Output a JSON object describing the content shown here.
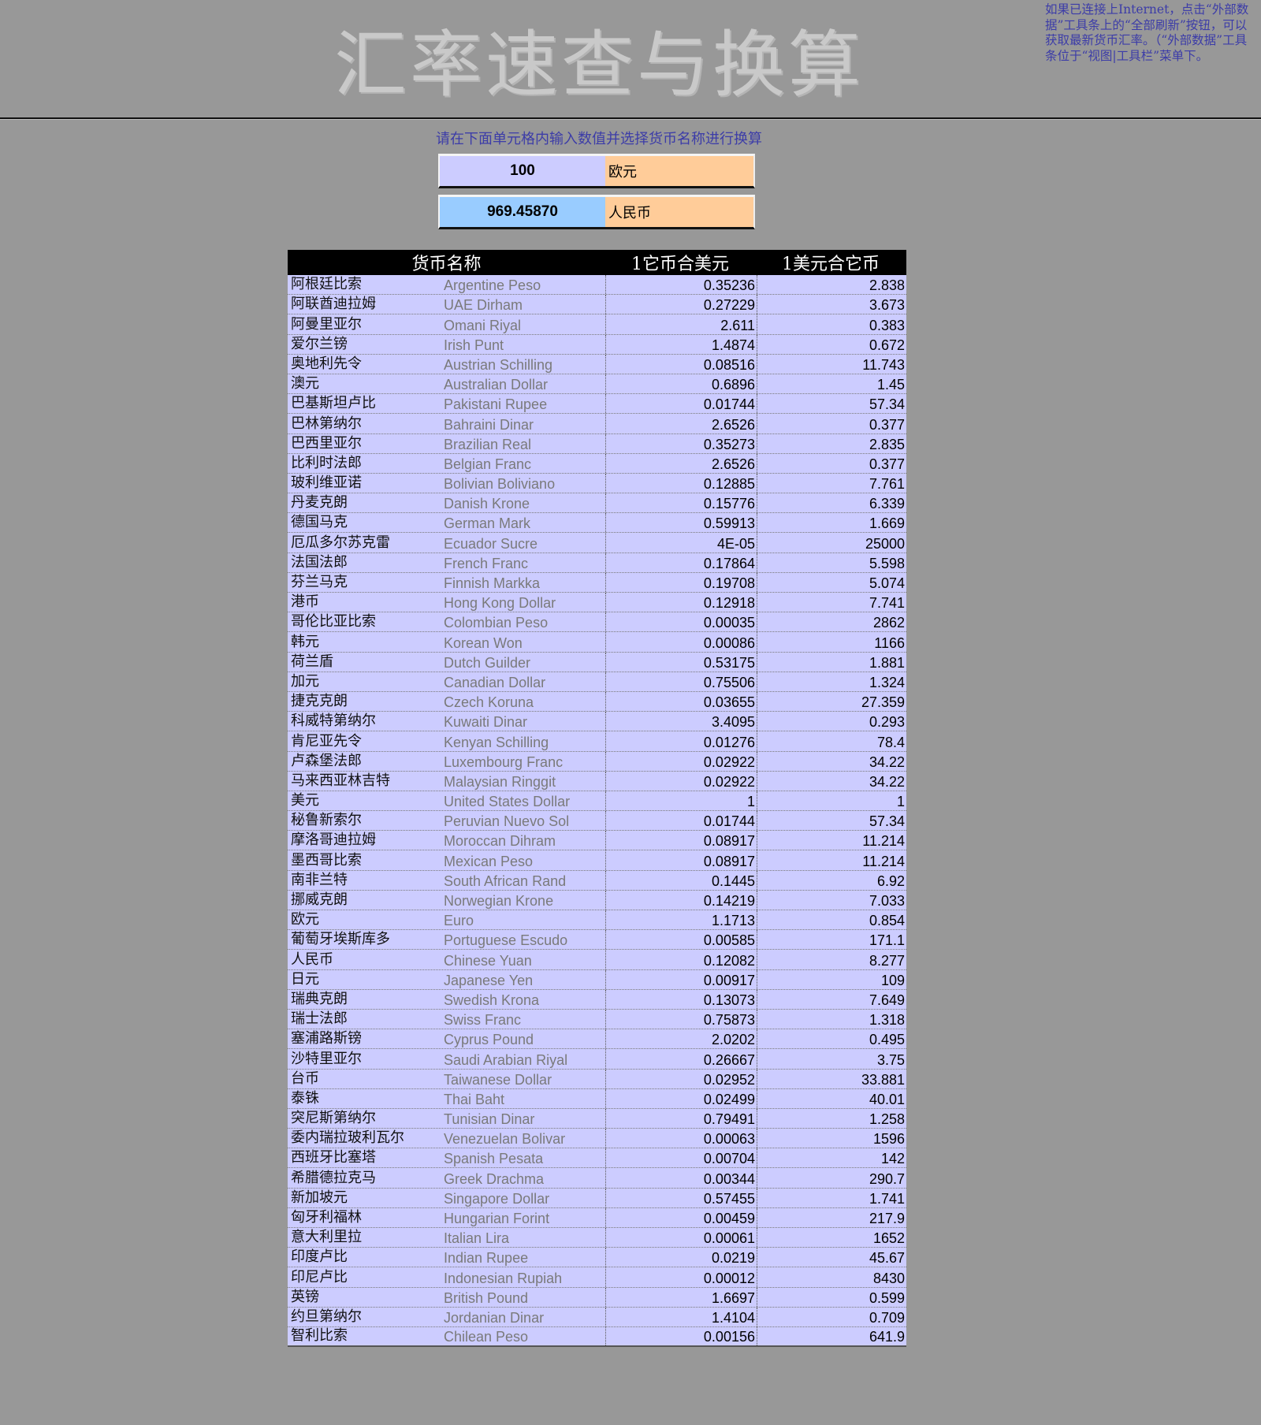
{
  "title": "汇率速查与换算",
  "note": "如果已连接上Internet，点击“外部数据”工具条上的“全部刷新”按钮，可以获取最新货币汇率。（“外部数据”工具条位于“视图|工具栏”菜单下。",
  "instruction": "请在下面单元格内输入数值并选择货币名称进行换算",
  "converter": {
    "input_value": "100",
    "input_currency": "欧元",
    "output_value": "969.45870",
    "output_currency": "人民币"
  },
  "table": {
    "headers": [
      "货币名称",
      "1它币合美元",
      "1美元合它币"
    ],
    "rows": [
      [
        "阿根廷比索",
        "Argentine Peso",
        "0.35236",
        "2.838"
      ],
      [
        "阿联酋迪拉姆",
        "UAE Dirham",
        "0.27229",
        "3.673"
      ],
      [
        "阿曼里亚尔",
        "Omani Riyal",
        "2.611",
        "0.383"
      ],
      [
        "爱尔兰镑",
        "Irish Punt",
        "1.4874",
        "0.672"
      ],
      [
        "奥地利先令",
        "Austrian Schilling",
        "0.08516",
        "11.743"
      ],
      [
        "澳元",
        "Australian Dollar",
        "0.6896",
        "1.45"
      ],
      [
        "巴基斯坦卢比",
        "Pakistani Rupee",
        "0.01744",
        "57.34"
      ],
      [
        "巴林第纳尔",
        "Bahraini Dinar",
        "2.6526",
        "0.377"
      ],
      [
        "巴西里亚尔",
        "Brazilian Real",
        "0.35273",
        "2.835"
      ],
      [
        "比利时法郎",
        "Belgian Franc",
        "2.6526",
        "0.377"
      ],
      [
        "玻利维亚诺",
        "Bolivian Boliviano",
        "0.12885",
        "7.761"
      ],
      [
        "丹麦克朗",
        "Danish Krone",
        "0.15776",
        "6.339"
      ],
      [
        "德国马克",
        "German Mark",
        "0.59913",
        "1.669"
      ],
      [
        "厄瓜多尔苏克雷",
        "Ecuador Sucre",
        "4E-05",
        "25000"
      ],
      [
        "法国法郎",
        "French Franc",
        "0.17864",
        "5.598"
      ],
      [
        "芬兰马克",
        "Finnish Markka",
        "0.19708",
        "5.074"
      ],
      [
        "港币",
        "Hong Kong Dollar",
        "0.12918",
        "7.741"
      ],
      [
        "哥伦比亚比索",
        "Colombian Peso",
        "0.00035",
        "2862"
      ],
      [
        "韩元",
        "Korean Won",
        "0.00086",
        "1166"
      ],
      [
        "荷兰盾",
        "Dutch Guilder",
        "0.53175",
        "1.881"
      ],
      [
        "加元",
        "Canadian Dollar",
        "0.75506",
        "1.324"
      ],
      [
        "捷克克朗",
        "Czech Koruna",
        "0.03655",
        "27.359"
      ],
      [
        "科威特第纳尔",
        "Kuwaiti Dinar",
        "3.4095",
        "0.293"
      ],
      [
        "肯尼亚先令",
        "Kenyan Schilling",
        "0.01276",
        "78.4"
      ],
      [
        "卢森堡法郎",
        "Luxembourg Franc",
        "0.02922",
        "34.22"
      ],
      [
        "马来西亚林吉特",
        "Malaysian Ringgit",
        "0.02922",
        "34.22"
      ],
      [
        "美元",
        "United States Dollar",
        "1",
        "1"
      ],
      [
        "秘鲁新索尔",
        "Peruvian Nuevo Sol",
        "0.01744",
        "57.34"
      ],
      [
        "摩洛哥迪拉姆",
        "Moroccan Dihram",
        "0.08917",
        "11.214"
      ],
      [
        "墨西哥比索",
        "Mexican Peso",
        "0.08917",
        "11.214"
      ],
      [
        "南非兰特",
        "South African Rand",
        "0.1445",
        "6.92"
      ],
      [
        "挪威克朗",
        "Norwegian Krone",
        "0.14219",
        "7.033"
      ],
      [
        "欧元",
        "Euro",
        "1.1713",
        "0.854"
      ],
      [
        "葡萄牙埃斯库多",
        "Portuguese Escudo",
        "0.00585",
        "171.1"
      ],
      [
        "人民币",
        "Chinese Yuan",
        "0.12082",
        "8.277"
      ],
      [
        "日元",
        "Japanese Yen",
        "0.00917",
        "109"
      ],
      [
        "瑞典克朗",
        "Swedish Krona",
        "0.13073",
        "7.649"
      ],
      [
        "瑞士法郎",
        "Swiss Franc",
        "0.75873",
        "1.318"
      ],
      [
        "塞浦路斯镑",
        "Cyprus Pound",
        "2.0202",
        "0.495"
      ],
      [
        "沙特里亚尔",
        "Saudi Arabian Riyal",
        "0.26667",
        "3.75"
      ],
      [
        "台币",
        "Taiwanese Dollar",
        "0.02952",
        "33.881"
      ],
      [
        "泰铢",
        "Thai Baht",
        "0.02499",
        "40.01"
      ],
      [
        "突尼斯第纳尔",
        "Tunisian Dinar",
        "0.79491",
        "1.258"
      ],
      [
        "委内瑞拉玻利瓦尔",
        "Venezuelan Bolivar",
        "0.00063",
        "1596"
      ],
      [
        "西班牙比塞塔",
        "Spanish Pesata",
        "0.00704",
        "142"
      ],
      [
        "希腊德拉克马",
        "Greek Drachma",
        "0.00344",
        "290.7"
      ],
      [
        "新加坡元",
        "Singapore Dollar",
        "0.57455",
        "1.741"
      ],
      [
        "匈牙利福林",
        "Hungarian Forint",
        "0.00459",
        "217.9"
      ],
      [
        "意大利里拉",
        "Italian Lira",
        "0.00061",
        "1652"
      ],
      [
        "印度卢比",
        "Indian Rupee",
        "0.0219",
        "45.67"
      ],
      [
        "印尼卢比",
        "Indonesian Rupiah",
        "0.00012",
        "8430"
      ],
      [
        "英镑",
        "British Pound",
        "1.6697",
        "0.599"
      ],
      [
        "约旦第纳尔",
        "Jordanian Dinar",
        "1.4104",
        "0.709"
      ],
      [
        "智利比索",
        "Chilean Peso",
        "0.00156",
        "641.9"
      ]
    ]
  }
}
